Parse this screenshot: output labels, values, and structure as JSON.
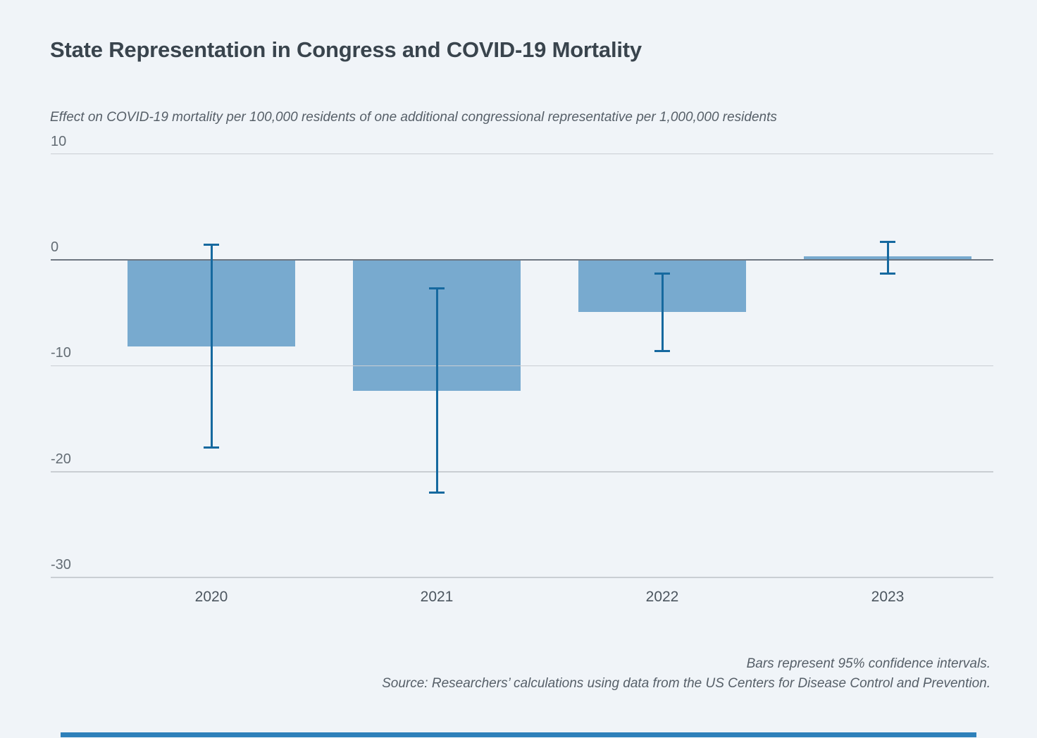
{
  "figure": {
    "title": "State Representation in Congress and COVID-19 Mortality",
    "subtitle": "Effect on COVID-19 mortality per 100,000 residents of one additional congressional representative per 1,000,000 residents",
    "note_line1": "Bars represent 95% confidence intervals.",
    "note_line2": "Source: Researchers’ calculations using data from the US Centers for Disease Control and Prevention."
  },
  "chart_data": {
    "type": "bar",
    "title": "State Representation in Congress and COVID-19 Mortality",
    "subtitle": "Effect on COVID-19 mortality per 100,000 residents of one additional congressional representative per 1,000,000 residents",
    "categories": [
      "2020",
      "2021",
      "2022",
      "2023"
    ],
    "values": [
      -8.2,
      -12.4,
      -4.9,
      0.3
    ],
    "confidence_intervals": [
      {
        "low": -17.7,
        "high": 1.4
      },
      {
        "low": -22.0,
        "high": -2.7
      },
      {
        "low": -8.6,
        "high": -1.3
      },
      {
        "low": -1.3,
        "high": 1.7
      }
    ],
    "yticks": [
      10,
      0,
      -10,
      -20,
      -30
    ],
    "ylim": [
      -30,
      10
    ],
    "xlabel": "",
    "ylabel": "",
    "grid": true,
    "legend": false,
    "notes": [
      "Bars represent 95% confidence intervals.",
      "Source: Researchers’ calculations using data from the US Centers for Disease Control and Prevention."
    ]
  },
  "colors": {
    "background": "#f0f4f8",
    "bar_fill": "#78aacf",
    "error_bar": "#16699f",
    "zero_line": "#6d7680",
    "gridline": "#c9ced3",
    "title_text": "#39444d",
    "muted_text": "#565f68",
    "bottom_bar": "#2e80ba"
  }
}
